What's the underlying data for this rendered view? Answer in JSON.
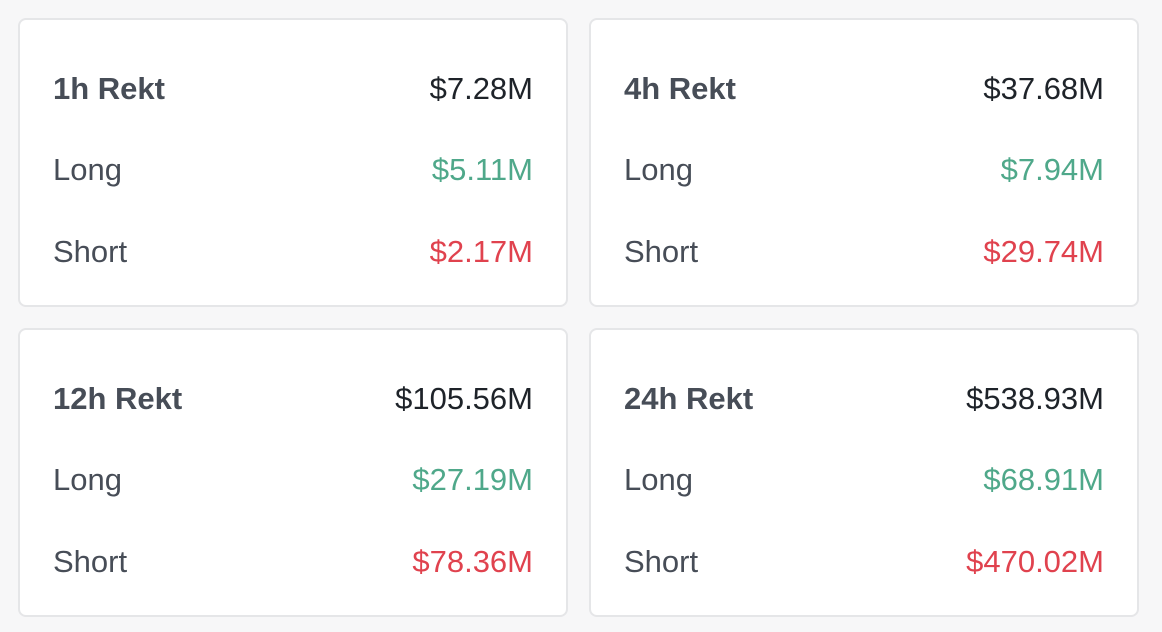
{
  "colors": {
    "long": "#4fa88a",
    "short": "#e0424e",
    "label": "#474d57",
    "total": "#1e2329"
  },
  "cards": [
    {
      "title": "1h Rekt",
      "total": "$7.28M",
      "long_label": "Long",
      "long_value": "$5.11M",
      "short_label": "Short",
      "short_value": "$2.17M"
    },
    {
      "title": "4h Rekt",
      "total": "$37.68M",
      "long_label": "Long",
      "long_value": "$7.94M",
      "short_label": "Short",
      "short_value": "$29.74M"
    },
    {
      "title": "12h Rekt",
      "total": "$105.56M",
      "long_label": "Long",
      "long_value": "$27.19M",
      "short_label": "Short",
      "short_value": "$78.36M"
    },
    {
      "title": "24h Rekt",
      "total": "$538.93M",
      "long_label": "Long",
      "long_value": "$68.91M",
      "short_label": "Short",
      "short_value": "$470.02M"
    }
  ]
}
